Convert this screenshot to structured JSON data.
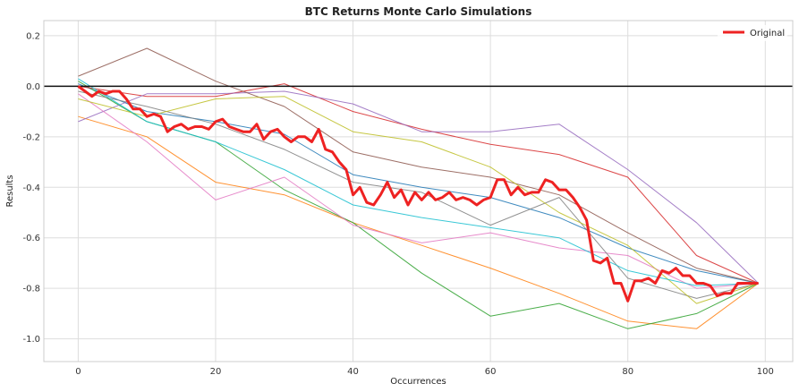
{
  "chart_data": {
    "type": "line",
    "title": "BTC Returns Monte Carlo Simulations",
    "xlabel": "Occurrences",
    "ylabel": "Results",
    "xlim": [
      -5,
      104
    ],
    "ylim": [
      -1.09,
      0.26
    ],
    "x_ticks": [
      0,
      20,
      40,
      60,
      80,
      100
    ],
    "y_ticks": [
      0.2,
      0.0,
      -0.2,
      -0.4,
      -0.6,
      -0.8,
      -1.0
    ],
    "grid": true,
    "legend": {
      "entries": [
        "Original"
      ],
      "placement": "top-right"
    },
    "reference_line": {
      "y": 0.0,
      "color": "#111111"
    },
    "series": [
      {
        "name": "Original",
        "color": "#ee2222",
        "x": [
          0,
          1,
          2,
          3,
          4,
          5,
          6,
          7,
          8,
          9,
          10,
          11,
          12,
          13,
          14,
          15,
          16,
          17,
          18,
          19,
          20,
          21,
          22,
          23,
          24,
          25,
          26,
          27,
          28,
          29,
          30,
          31,
          32,
          33,
          34,
          35,
          36,
          37,
          38,
          39,
          40,
          41,
          42,
          43,
          44,
          45,
          46,
          47,
          48,
          49,
          50,
          51,
          52,
          53,
          54,
          55,
          56,
          57,
          58,
          59,
          60,
          61,
          62,
          63,
          64,
          65,
          66,
          67,
          68,
          69,
          70,
          71,
          72,
          73,
          74,
          75,
          76,
          77,
          78,
          79,
          80,
          81,
          82,
          83,
          84,
          85,
          86,
          87,
          88,
          89,
          90,
          91,
          92,
          93,
          94,
          95,
          96,
          97,
          98,
          99
        ],
        "values": [
          0.0,
          -0.02,
          -0.04,
          -0.02,
          -0.03,
          -0.02,
          -0.02,
          -0.05,
          -0.09,
          -0.09,
          -0.12,
          -0.11,
          -0.12,
          -0.18,
          -0.16,
          -0.15,
          -0.17,
          -0.16,
          -0.16,
          -0.17,
          -0.14,
          -0.13,
          -0.16,
          -0.17,
          -0.18,
          -0.18,
          -0.15,
          -0.21,
          -0.18,
          -0.17,
          -0.2,
          -0.22,
          -0.2,
          -0.2,
          -0.22,
          -0.17,
          -0.25,
          -0.26,
          -0.3,
          -0.33,
          -0.43,
          -0.4,
          -0.46,
          -0.47,
          -0.43,
          -0.38,
          -0.44,
          -0.41,
          -0.47,
          -0.42,
          -0.45,
          -0.42,
          -0.45,
          -0.44,
          -0.42,
          -0.45,
          -0.44,
          -0.45,
          -0.47,
          -0.45,
          -0.44,
          -0.37,
          -0.37,
          -0.43,
          -0.4,
          -0.43,
          -0.42,
          -0.42,
          -0.37,
          -0.38,
          -0.41,
          -0.41,
          -0.44,
          -0.48,
          -0.53,
          -0.69,
          -0.7,
          -0.68,
          -0.78,
          -0.78,
          -0.85,
          -0.77,
          -0.77,
          -0.76,
          -0.78,
          -0.73,
          -0.74,
          -0.72,
          -0.75,
          -0.75,
          -0.78,
          -0.78,
          -0.79,
          -0.83,
          -0.82,
          -0.82,
          -0.78,
          -0.78,
          -0.78,
          -0.78
        ]
      },
      {
        "color": "#1f77b4",
        "x": [
          0,
          10,
          20,
          30,
          40,
          50,
          60,
          70,
          80,
          90,
          99
        ],
        "values": [
          0.01,
          -0.1,
          -0.14,
          -0.19,
          -0.35,
          -0.4,
          -0.44,
          -0.52,
          -0.64,
          -0.73,
          -0.78
        ]
      },
      {
        "color": "#ff7f0e",
        "x": [
          0,
          10,
          20,
          30,
          40,
          50,
          60,
          70,
          80,
          90,
          99
        ],
        "values": [
          -0.12,
          -0.2,
          -0.38,
          -0.43,
          -0.54,
          -0.63,
          -0.72,
          -0.82,
          -0.93,
          -0.96,
          -0.78
        ]
      },
      {
        "color": "#2ca02c",
        "x": [
          0,
          10,
          20,
          30,
          40,
          50,
          60,
          70,
          80,
          90,
          99
        ],
        "values": [
          0.02,
          -0.14,
          -0.22,
          -0.41,
          -0.54,
          -0.74,
          -0.91,
          -0.86,
          -0.96,
          -0.9,
          -0.78
        ]
      },
      {
        "color": "#d62728",
        "x": [
          0,
          10,
          20,
          30,
          40,
          50,
          60,
          70,
          80,
          90,
          99
        ],
        "values": [
          0.0,
          -0.04,
          -0.04,
          0.01,
          -0.1,
          -0.17,
          -0.23,
          -0.27,
          -0.36,
          -0.67,
          -0.78
        ]
      },
      {
        "color": "#9467bd",
        "x": [
          0,
          10,
          20,
          30,
          40,
          50,
          60,
          70,
          80,
          90,
          99
        ],
        "values": [
          -0.14,
          -0.03,
          -0.03,
          -0.02,
          -0.07,
          -0.18,
          -0.18,
          -0.15,
          -0.33,
          -0.54,
          -0.78
        ]
      },
      {
        "color": "#8c564b",
        "x": [
          0,
          10,
          20,
          30,
          40,
          50,
          60,
          70,
          80,
          90,
          99
        ],
        "values": [
          0.04,
          0.15,
          0.02,
          -0.08,
          -0.26,
          -0.32,
          -0.36,
          -0.43,
          -0.58,
          -0.72,
          -0.78
        ]
      },
      {
        "color": "#e377c2",
        "x": [
          0,
          10,
          20,
          30,
          40,
          50,
          60,
          70,
          80,
          90,
          99
        ],
        "values": [
          -0.03,
          -0.22,
          -0.45,
          -0.36,
          -0.55,
          -0.62,
          -0.58,
          -0.64,
          -0.67,
          -0.8,
          -0.78
        ]
      },
      {
        "color": "#7f7f7f",
        "x": [
          0,
          10,
          20,
          30,
          40,
          50,
          60,
          70,
          80,
          90,
          99
        ],
        "values": [
          -0.02,
          -0.08,
          -0.15,
          -0.25,
          -0.38,
          -0.42,
          -0.55,
          -0.44,
          -0.76,
          -0.84,
          -0.78
        ]
      },
      {
        "color": "#bcbd22",
        "x": [
          0,
          10,
          20,
          30,
          40,
          50,
          60,
          70,
          80,
          90,
          99
        ],
        "values": [
          -0.05,
          -0.12,
          -0.05,
          -0.04,
          -0.18,
          -0.22,
          -0.32,
          -0.5,
          -0.63,
          -0.86,
          -0.78
        ]
      },
      {
        "color": "#17becf",
        "x": [
          0,
          10,
          20,
          30,
          40,
          50,
          60,
          70,
          80,
          90,
          99
        ],
        "values": [
          0.03,
          -0.14,
          -0.22,
          -0.33,
          -0.47,
          -0.52,
          -0.56,
          -0.6,
          -0.73,
          -0.79,
          -0.78
        ]
      }
    ]
  }
}
